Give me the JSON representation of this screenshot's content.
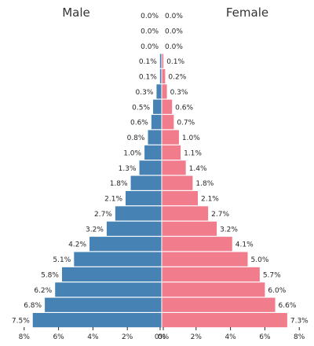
{
  "chart_data": {
    "type": "bar",
    "orientation": "horizontal",
    "layout": "population-pyramid",
    "panel_titles": {
      "left": "Male",
      "right": "Female"
    },
    "xlim": [
      0,
      8
    ],
    "x_ticks": [
      8,
      6,
      4,
      2,
      0
    ],
    "tick_labels": {
      "left": [
        "8%",
        "6%",
        "4%",
        "2%",
        "0%"
      ],
      "right": [
        "0%",
        "2%",
        "4%",
        "6%",
        "8%"
      ]
    },
    "series": [
      {
        "name": "Male",
        "color": "#4682b4",
        "values": [
          0.0,
          0.0,
          0.0,
          0.1,
          0.1,
          0.3,
          0.5,
          0.6,
          0.8,
          1.0,
          1.3,
          1.8,
          2.1,
          2.7,
          3.2,
          4.2,
          5.1,
          5.8,
          6.2,
          6.8,
          7.5
        ],
        "labels": [
          "0.0%",
          "0.0%",
          "0.0%",
          "0.1%",
          "0.1%",
          "0.3%",
          "0.5%",
          "0.6%",
          "0.8%",
          "1.0%",
          "1.3%",
          "1.8%",
          "2.1%",
          "2.7%",
          "3.2%",
          "4.2%",
          "5.1%",
          "5.8%",
          "6.2%",
          "6.8%",
          "7.5%"
        ]
      },
      {
        "name": "Female",
        "color": "#f07c8c",
        "values": [
          0.0,
          0.0,
          0.0,
          0.1,
          0.2,
          0.3,
          0.6,
          0.7,
          1.0,
          1.1,
          1.4,
          1.8,
          2.1,
          2.7,
          3.2,
          4.1,
          5.0,
          5.7,
          6.0,
          6.6,
          7.3
        ],
        "labels": [
          "0.0%",
          "0.0%",
          "0.0%",
          "0.1%",
          "0.2%",
          "0.3%",
          "0.6%",
          "0.7%",
          "1.0%",
          "1.1%",
          "1.4%",
          "1.8%",
          "2.1%",
          "2.7%",
          "3.2%",
          "4.1%",
          "5.0%",
          "5.7%",
          "6.0%",
          "6.6%",
          "7.3%"
        ]
      }
    ],
    "grid": false,
    "legend": "none"
  }
}
